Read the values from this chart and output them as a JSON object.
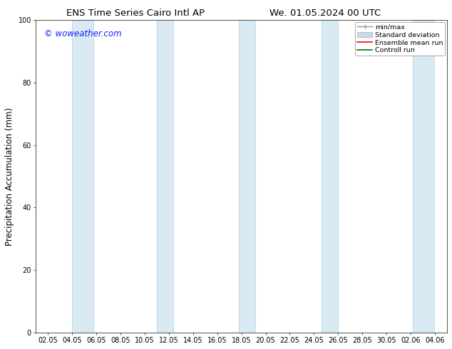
{
  "title_left": "ENS Time Series Cairo Intl AP",
  "title_right": "We. 01.05.2024 00 UTC",
  "ylabel": "Precipitation Accumulation (mm)",
  "ylim": [
    0,
    100
  ],
  "yticks": [
    0,
    20,
    40,
    60,
    80,
    100
  ],
  "background_color": "#ffffff",
  "plot_bg_color": "#ffffff",
  "watermark": "© woweather.com",
  "watermark_color": "#1a1aff",
  "legend_labels": [
    "min/max",
    "Standard deviation",
    "Ensemble mean run",
    "Controll run"
  ],
  "legend_colors": [
    "#999999",
    "#c8dce8",
    "#ff0000",
    "#007700"
  ],
  "shaded_band_color": "#daeaf5",
  "shaded_band_edge_color": "#b0cce0",
  "xtick_labels": [
    "02.05",
    "04.05",
    "06.05",
    "08.05",
    "10.05",
    "12.05",
    "14.05",
    "16.05",
    "18.05",
    "20.05",
    "22.05",
    "24.05",
    "26.05",
    "28.05",
    "30.05",
    "02.06",
    "04.06"
  ],
  "shaded_centers": [
    5.0,
    12.0,
    19.0,
    26.0,
    34.0
  ],
  "shaded_widths": [
    1.8,
    1.4,
    1.4,
    1.4,
    1.8
  ],
  "xmin": 1.0,
  "xmax": 36.0,
  "title_fontsize": 9.5,
  "tick_fontsize": 7.0,
  "label_fontsize": 8.5,
  "watermark_fontsize": 8.5
}
